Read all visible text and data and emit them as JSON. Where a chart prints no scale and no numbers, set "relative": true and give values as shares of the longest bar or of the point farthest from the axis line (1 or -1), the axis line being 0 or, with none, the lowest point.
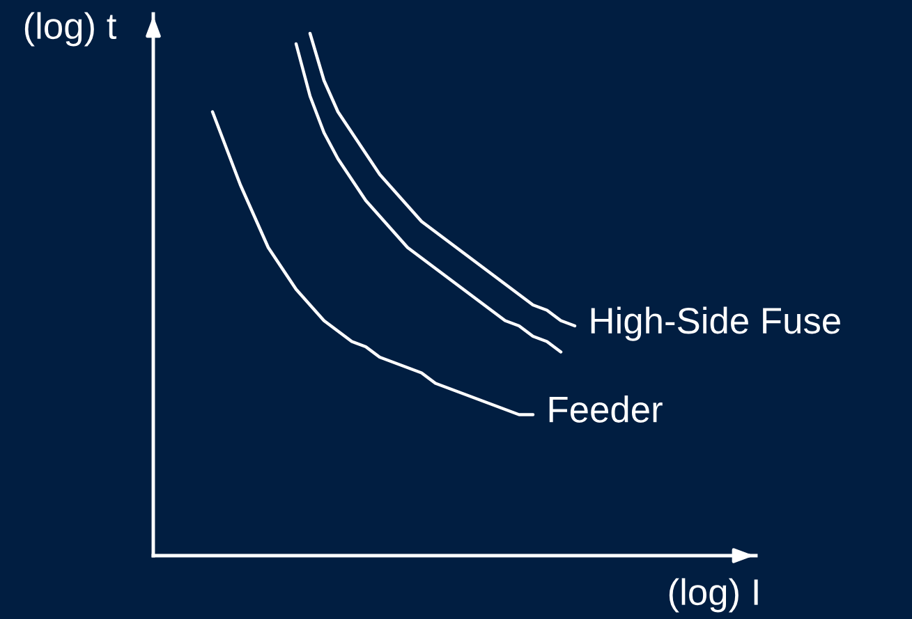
{
  "chart_data": {
    "type": "line",
    "relative": true,
    "xlabel": "(log) I",
    "ylabel": "(log) t",
    "categories": [
      null,
      null,
      null,
      null,
      null,
      null,
      null,
      null,
      null,
      null,
      null,
      null,
      null,
      null,
      null,
      null,
      null,
      null,
      null,
      null,
      null,
      null,
      null,
      null,
      null,
      null,
      null
    ],
    "series": [
      {
        "name": "Feeder",
        "color": "#ffffff",
        "values": [
          0.85,
          0.78,
          0.71,
          0.65,
          0.59,
          0.55,
          0.51,
          0.48,
          0.45,
          0.43,
          0.41,
          0.4,
          0.38,
          0.37,
          0.36,
          0.35,
          0.33,
          0.32,
          0.31,
          0.3,
          0.29,
          0.28,
          0.27,
          0.27,
          null,
          null,
          null
        ]
      },
      {
        "color": "#ffffff",
        "values": [
          null,
          null,
          null,
          null,
          null,
          null,
          0.98,
          0.88,
          0.81,
          0.76,
          0.72,
          0.68,
          0.65,
          0.62,
          0.59,
          0.57,
          0.55,
          0.53,
          0.51,
          0.49,
          0.47,
          0.45,
          0.44,
          0.42,
          0.41,
          0.39,
          null
        ]
      },
      {
        "name": "High-Side Fuse",
        "color": "#ffffff",
        "values": [
          null,
          null,
          null,
          null,
          null,
          null,
          null,
          1.0,
          0.91,
          0.85,
          0.81,
          0.77,
          0.73,
          0.7,
          0.67,
          0.64,
          0.62,
          0.6,
          0.58,
          0.56,
          0.54,
          0.52,
          0.5,
          0.48,
          0.47,
          0.45,
          0.44
        ]
      }
    ],
    "grid": false,
    "legend": false,
    "marker": "none",
    "line_style": "solid"
  }
}
